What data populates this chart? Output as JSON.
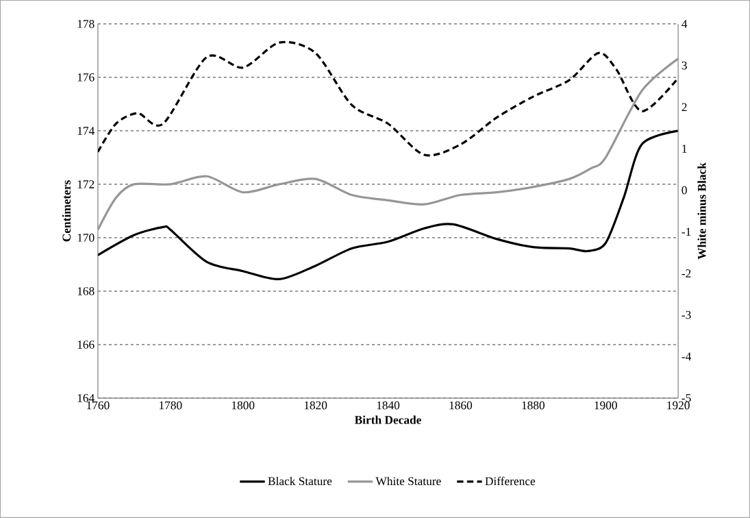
{
  "chart_data": {
    "type": "line",
    "xlabel": "Birth Decade",
    "ylabel": "Centimeters",
    "y2label": "White minus Black",
    "xlim": [
      1760,
      1920
    ],
    "xticks": [
      1760,
      1780,
      1800,
      1820,
      1840,
      1860,
      1880,
      1900,
      1920
    ],
    "ylim": [
      164,
      178
    ],
    "yticks": [
      164,
      166,
      168,
      170,
      172,
      174,
      176,
      178
    ],
    "y2lim": [
      -5,
      4
    ],
    "y2ticks": [
      -5,
      -4,
      -3,
      -2,
      -1,
      0,
      1,
      2,
      3,
      4
    ],
    "grid": "y",
    "legend": "bottom",
    "series": [
      {
        "name": "Black Stature",
        "color": "#000000",
        "line_style": "solid",
        "x": [
          1760,
          1770,
          1778,
          1780,
          1790,
          1800,
          1810,
          1820,
          1830,
          1840,
          1850,
          1858,
          1870,
          1880,
          1890,
          1895,
          1900,
          1905,
          1910,
          1920
        ],
        "values": [
          169.35,
          170.1,
          170.4,
          170.3,
          169.1,
          168.75,
          168.45,
          168.95,
          169.6,
          169.85,
          170.35,
          170.5,
          169.95,
          169.65,
          169.6,
          169.5,
          169.8,
          171.5,
          173.5,
          174.0
        ]
      },
      {
        "name": "White Stature",
        "color": "#969696",
        "line_style": "solid",
        "x": [
          1760,
          1765,
          1770,
          1780,
          1790,
          1800,
          1810,
          1820,
          1830,
          1840,
          1850,
          1860,
          1870,
          1880,
          1890,
          1896,
          1900,
          1910,
          1920
        ],
        "values": [
          170.3,
          171.5,
          172.0,
          172.0,
          172.3,
          171.7,
          172.0,
          172.2,
          171.6,
          171.4,
          171.25,
          171.6,
          171.7,
          171.9,
          172.2,
          172.6,
          173.0,
          175.5,
          176.7
        ]
      },
      {
        "name": "Difference",
        "color": "#000000",
        "line_style": "dashed",
        "axis": "y2",
        "x": [
          1760,
          1765,
          1771,
          1778,
          1790,
          1800,
          1810,
          1820,
          1830,
          1840,
          1850,
          1860,
          1870,
          1880,
          1890,
          1898,
          1903,
          1910,
          1920
        ],
        "values": [
          0.92,
          1.6,
          1.85,
          1.6,
          3.2,
          2.95,
          3.55,
          3.3,
          2.05,
          1.6,
          0.85,
          1.1,
          1.75,
          2.25,
          2.65,
          3.3,
          2.9,
          1.9,
          2.7
        ]
      }
    ]
  }
}
